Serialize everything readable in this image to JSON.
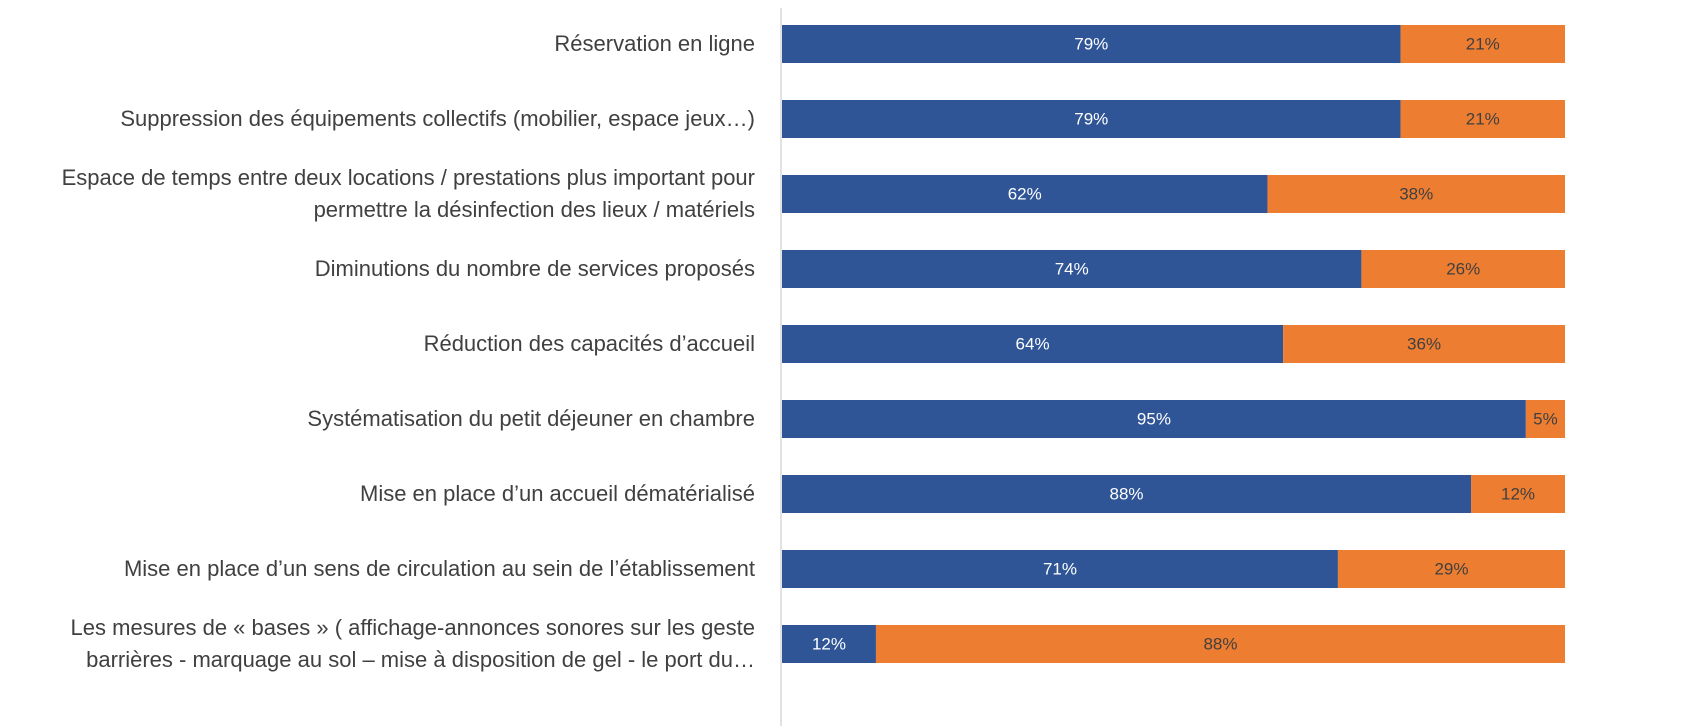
{
  "chart_data": {
    "type": "stacked-barh",
    "categories": [
      "Réservation en ligne",
      "Suppression des équipements collectifs (mobilier, espace jeux…)",
      "Espace de temps entre deux locations / prestations plus important pour permettre la désinfection des lieux / matériels",
      "Diminutions du nombre de services proposés",
      "Réduction des capacités d’accueil",
      "Systématisation du petit déjeuner en chambre",
      "Mise en place d’un accueil dématérialisé",
      "Mise en place d’un sens de circulation au sein de l’établissement",
      "Les mesures de « bases » ( affichage-annonces sonores sur les geste barrières - marquage au sol – mise à disposition de gel - le port du…"
    ],
    "series": [
      {
        "color": "#2f5597",
        "values": [
          79,
          79,
          62,
          74,
          64,
          95,
          88,
          71,
          12
        ],
        "value_labels": [
          "79%",
          "79%",
          "62%",
          "74%",
          "64%",
          "95%",
          "88%",
          "71%",
          "12%"
        ]
      },
      {
        "color": "#ed7d31",
        "values": [
          21,
          21,
          38,
          26,
          36,
          5,
          12,
          29,
          88
        ],
        "value_labels": [
          "21%",
          "21%",
          "38%",
          "26%",
          "36%",
          "5%",
          "12%",
          "29%",
          "88%"
        ]
      }
    ],
    "xlim": [
      0,
      100
    ]
  }
}
